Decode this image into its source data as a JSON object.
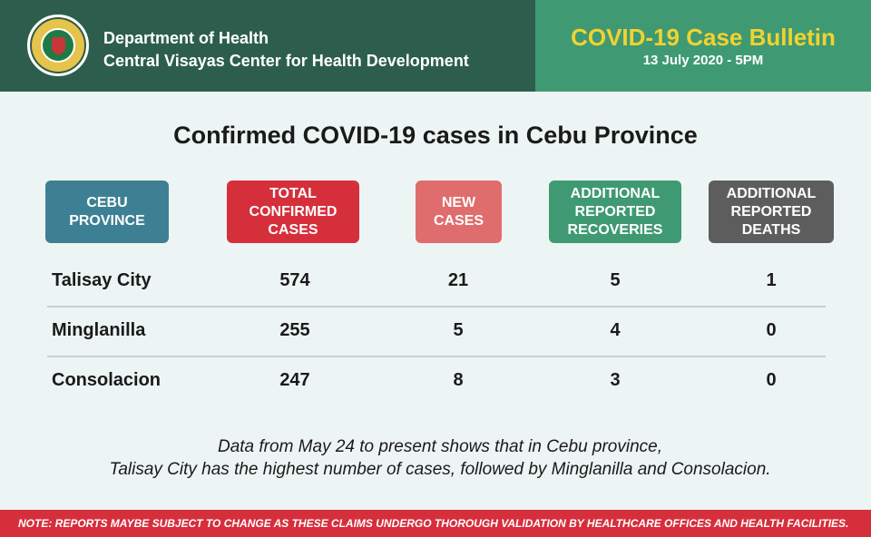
{
  "header": {
    "org_line1": "Department of Health",
    "org_line2": "Central Visayas Center for Health Development",
    "bulletin_title": "COVID-19 Case Bulletin",
    "bulletin_date": "13 July 2020 - 5PM",
    "colors": {
      "left_bg": "#2d5e4d",
      "right_bg": "#3f9a73",
      "title": "#f2d230"
    }
  },
  "main_title": "Confirmed COVID-19 cases in Cebu Province",
  "table": {
    "columns": [
      {
        "label_lines": [
          "CEBU",
          "PROVINCE"
        ],
        "color": "#3e8093"
      },
      {
        "label_lines": [
          "TOTAL",
          "CONFIRMED",
          "CASES"
        ],
        "color": "#d62f3c"
      },
      {
        "label_lines": [
          "NEW",
          "CASES"
        ],
        "color": "#e06d6d"
      },
      {
        "label_lines": [
          "ADDITIONAL",
          "REPORTED",
          "RECOVERIES"
        ],
        "color": "#3f9a73"
      },
      {
        "label_lines": [
          "ADDITIONAL",
          "REPORTED",
          "DEATHS"
        ],
        "color": "#5d5d5d"
      }
    ],
    "rows": [
      {
        "name": "Talisay City",
        "total": "574",
        "new": "21",
        "recoveries": "5",
        "deaths": "1"
      },
      {
        "name": "Minglanilla",
        "total": "255",
        "new": "5",
        "recoveries": "4",
        "deaths": "0"
      },
      {
        "name": "Consolacion",
        "total": "247",
        "new": "8",
        "recoveries": "3",
        "deaths": "0"
      }
    ]
  },
  "summary": {
    "line1": "Data from May 24 to present shows that in Cebu province,",
    "line2": "Talisay City has the highest number of cases, followed by Minglanilla and Consolacion."
  },
  "footer_note": "NOTE:  REPORTS MAYBE SUBJECT TO CHANGE AS THESE CLAIMS UNDERGO THOROUGH VALIDATION BY HEALTHCARE OFFICES AND HEALTH FACILITIES."
}
